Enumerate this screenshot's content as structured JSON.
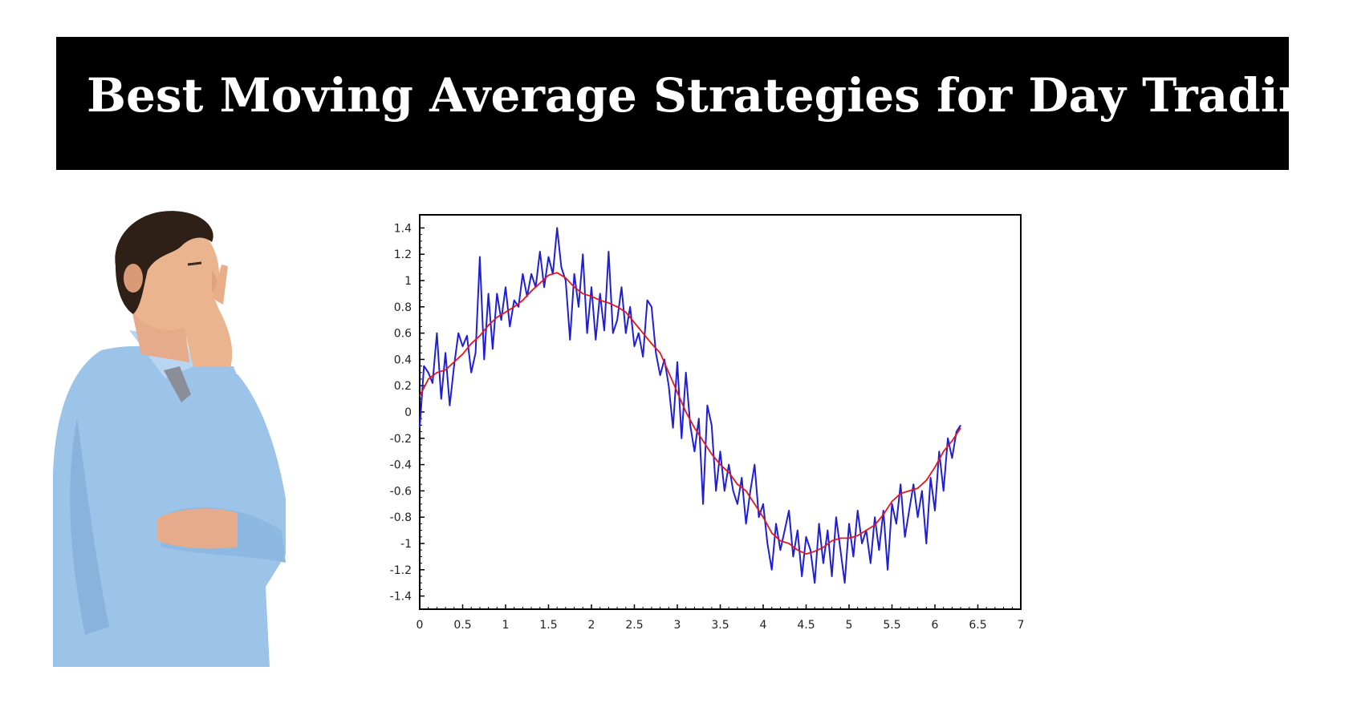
{
  "banner": {
    "title": "Best Moving Average Strategies for Day Trading",
    "background_color": "#000000",
    "text_color": "#ffffff"
  },
  "illustration": {
    "icon": "thinking-businessman-icon"
  },
  "chart_data": {
    "type": "line",
    "title": "",
    "xlabel": "",
    "ylabel": "",
    "xlim": [
      0,
      7
    ],
    "ylim": [
      -1.5,
      1.5
    ],
    "xticks": [
      0,
      0.5,
      1,
      1.5,
      2,
      2.5,
      3,
      3.5,
      4,
      4.5,
      5,
      5.5,
      6,
      6.5,
      7
    ],
    "xtick_labels": [
      "0",
      "0.5",
      "1",
      "1.5",
      "2",
      "2.5",
      "3",
      "3.5",
      "4",
      "4.5",
      "5",
      "5.5",
      "6",
      "6.5",
      "7"
    ],
    "yticks": [
      1.4,
      1.2,
      1,
      0.8,
      0.6,
      0.4,
      0.2,
      0,
      -0.2,
      -0.4,
      -0.6,
      -0.8,
      -1,
      -1.2,
      -1.4
    ],
    "ytick_labels": [
      "1.4",
      "1.2",
      "1",
      "0.8",
      "0.6",
      "0.4",
      "0.2",
      "0",
      "-0.2",
      "-0.4",
      "-0.6",
      "-0.8",
      "-1",
      "-1.2",
      "-1.4"
    ],
    "grid": false,
    "legend": "none",
    "series": [
      {
        "color": "#1f1fd6",
        "x": [
          0,
          0.05,
          0.1,
          0.15,
          0.2,
          0.25,
          0.3,
          0.35,
          0.4,
          0.45,
          0.5,
          0.55,
          0.6,
          0.65,
          0.7,
          0.75,
          0.8,
          0.85,
          0.9,
          0.95,
          1,
          1.05,
          1.1,
          1.15,
          1.2,
          1.25,
          1.3,
          1.35,
          1.4,
          1.45,
          1.5,
          1.55,
          1.6,
          1.65,
          1.7,
          1.75,
          1.8,
          1.85,
          1.9,
          1.95,
          2,
          2.05,
          2.1,
          2.15,
          2.2,
          2.25,
          2.3,
          2.35,
          2.4,
          2.45,
          2.5,
          2.55,
          2.6,
          2.65,
          2.7,
          2.75,
          2.8,
          2.85,
          2.9,
          2.95,
          3,
          3.05,
          3.1,
          3.15,
          3.2,
          3.25,
          3.3,
          3.35,
          3.4,
          3.45,
          3.5,
          3.55,
          3.6,
          3.65,
          3.7,
          3.75,
          3.8,
          3.85,
          3.9,
          3.95,
          4,
          4.05,
          4.1,
          4.15,
          4.2,
          4.25,
          4.3,
          4.35,
          4.4,
          4.45,
          4.5,
          4.55,
          4.6,
          4.65,
          4.7,
          4.75,
          4.8,
          4.85,
          4.9,
          4.95,
          5,
          5.05,
          5.1,
          5.15,
          5.2,
          5.25,
          5.3,
          5.35,
          5.4,
          5.45,
          5.5,
          5.55,
          5.6,
          5.65,
          5.7,
          5.75,
          5.8,
          5.85,
          5.9,
          5.95,
          6,
          6.05,
          6.1,
          6.15,
          6.2,
          6.25,
          6.3
        ],
        "values": [
          -0.12,
          0.35,
          0.3,
          0.22,
          0.6,
          0.1,
          0.45,
          0.05,
          0.35,
          0.6,
          0.5,
          0.58,
          0.3,
          0.45,
          1.18,
          0.4,
          0.9,
          0.48,
          0.9,
          0.7,
          0.95,
          0.65,
          0.85,
          0.8,
          1.05,
          0.88,
          1.05,
          0.95,
          1.22,
          0.95,
          1.18,
          1.05,
          1.4,
          1.1,
          1.0,
          0.55,
          1.05,
          0.8,
          1.2,
          0.6,
          0.95,
          0.55,
          0.9,
          0.62,
          1.22,
          0.6,
          0.7,
          0.95,
          0.6,
          0.8,
          0.5,
          0.6,
          0.42,
          0.85,
          0.8,
          0.45,
          0.28,
          0.4,
          0.2,
          -0.12,
          0.38,
          -0.2,
          0.3,
          -0.1,
          -0.3,
          -0.05,
          -0.7,
          0.05,
          -0.1,
          -0.6,
          -0.3,
          -0.6,
          -0.4,
          -0.6,
          -0.7,
          -0.5,
          -0.85,
          -0.6,
          -0.4,
          -0.8,
          -0.7,
          -1.0,
          -1.2,
          -0.85,
          -1.05,
          -0.9,
          -0.75,
          -1.1,
          -0.9,
          -1.25,
          -0.95,
          -1.05,
          -1.3,
          -0.85,
          -1.15,
          -0.9,
          -1.25,
          -0.8,
          -1.05,
          -1.3,
          -0.85,
          -1.1,
          -0.75,
          -1.0,
          -0.9,
          -1.15,
          -0.8,
          -1.05,
          -0.75,
          -1.2,
          -0.7,
          -0.85,
          -0.55,
          -0.95,
          -0.75,
          -0.55,
          -0.8,
          -0.6,
          -1.0,
          -0.5,
          -0.75,
          -0.3,
          -0.6,
          -0.2,
          -0.35,
          -0.15,
          -0.1
        ]
      },
      {
        "color": "#e8141b",
        "x": [
          0,
          0.1,
          0.2,
          0.3,
          0.4,
          0.5,
          0.6,
          0.7,
          0.8,
          0.9,
          1.0,
          1.1,
          1.2,
          1.3,
          1.4,
          1.5,
          1.6,
          1.7,
          1.8,
          1.9,
          2.0,
          2.1,
          2.2,
          2.3,
          2.4,
          2.5,
          2.6,
          2.7,
          2.8,
          2.9,
          3.0,
          3.1,
          3.2,
          3.3,
          3.4,
          3.5,
          3.6,
          3.7,
          3.8,
          3.9,
          4.0,
          4.1,
          4.2,
          4.3,
          4.4,
          4.5,
          4.6,
          4.7,
          4.8,
          4.9,
          5.0,
          5.1,
          5.2,
          5.3,
          5.4,
          5.5,
          5.6,
          5.7,
          5.8,
          5.9,
          6.0,
          6.1,
          6.2,
          6.3
        ],
        "values": [
          0.12,
          0.25,
          0.3,
          0.32,
          0.38,
          0.44,
          0.52,
          0.58,
          0.66,
          0.72,
          0.76,
          0.8,
          0.85,
          0.92,
          0.98,
          1.04,
          1.06,
          1.02,
          0.95,
          0.9,
          0.88,
          0.85,
          0.83,
          0.8,
          0.76,
          0.68,
          0.6,
          0.52,
          0.45,
          0.3,
          0.15,
          0.0,
          -0.12,
          -0.22,
          -0.32,
          -0.4,
          -0.46,
          -0.55,
          -0.6,
          -0.7,
          -0.8,
          -0.92,
          -0.98,
          -1.0,
          -1.05,
          -1.08,
          -1.06,
          -1.03,
          -0.98,
          -0.96,
          -0.96,
          -0.94,
          -0.9,
          -0.86,
          -0.78,
          -0.68,
          -0.62,
          -0.6,
          -0.58,
          -0.52,
          -0.42,
          -0.3,
          -0.22,
          -0.12
        ]
      }
    ]
  }
}
